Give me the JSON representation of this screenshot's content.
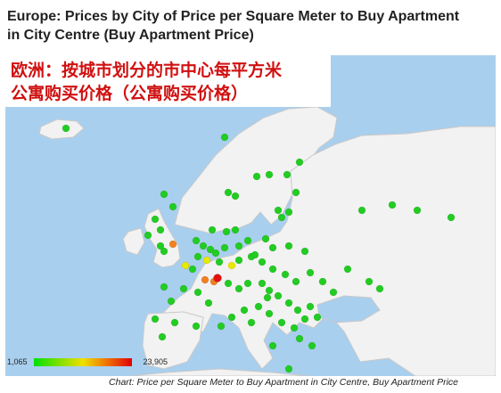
{
  "title": {
    "line1": "Europe: Prices by City of Price per Square Meter to Buy Apartment",
    "line2": "in City Centre (Buy Apartment Price)"
  },
  "cn_title": {
    "line1": "欧洲：按城市划分的市中心每平方米",
    "line2": "公寓购买价格（公寓购买价格）"
  },
  "legend": {
    "min": "1,065",
    "max": "23,905",
    "colors": [
      "#00e000",
      "#7be000",
      "#f0e000",
      "#f07000",
      "#e00000"
    ]
  },
  "caption": "Chart: Price per Square Meter to Buy Apartment in City Centre, Buy Apartment Price",
  "colors": {
    "sea": "#a9cfee",
    "land": "#f2f2f2",
    "border": "#c9c9c9"
  }
}
